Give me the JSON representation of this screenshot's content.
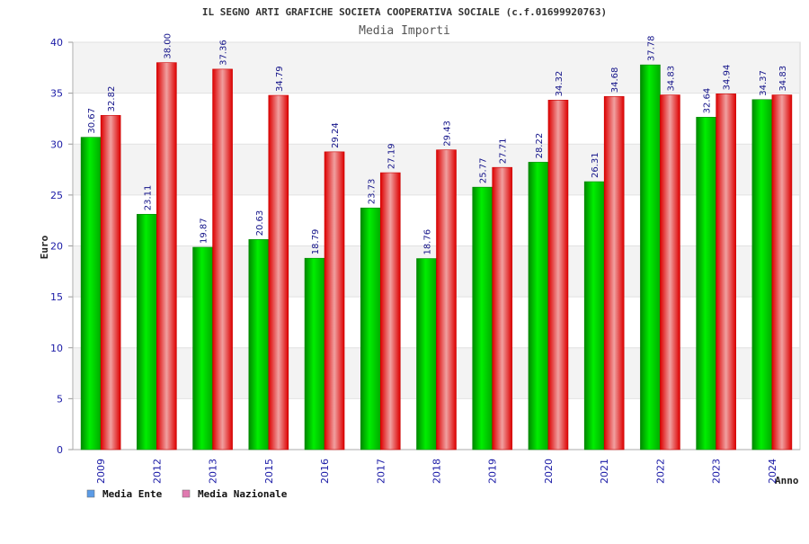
{
  "chart_data": {
    "type": "bar",
    "title": "IL SEGNO ARTI GRAFICHE SOCIETA COOPERATIVA SOCIALE (c.f.01699920763)",
    "subtitle": "Media Importi",
    "xlabel": "Anno",
    "ylabel": "Euro",
    "ylim": [
      0,
      40
    ],
    "yticks": [
      0,
      5,
      10,
      15,
      20,
      25,
      30,
      35,
      40
    ],
    "grid": true,
    "legend_position": "bottom-left",
    "categories": [
      "2009",
      "2012",
      "2013",
      "2015",
      "2016",
      "2017",
      "2018",
      "2019",
      "2020",
      "2021",
      "2022",
      "2023",
      "2024"
    ],
    "series": [
      {
        "name": "Media Ente",
        "color": "#00cc00",
        "legend_color": "#5b9be6",
        "values": [
          30.67,
          23.11,
          19.87,
          20.63,
          18.79,
          23.73,
          18.76,
          25.77,
          28.22,
          26.31,
          37.78,
          32.64,
          34.37
        ],
        "labels": [
          "30.67",
          "23.11",
          "19.87",
          "20.63",
          "18.79",
          "23.73",
          "18.76",
          "25.77",
          "28.22",
          "26.31",
          "37.78",
          "32.64",
          "34.37"
        ]
      },
      {
        "name": "Media Nazionale",
        "color": "#ee0000",
        "legend_color": "#e07ab0",
        "values": [
          32.82,
          38.0,
          37.36,
          34.79,
          29.24,
          27.19,
          29.43,
          27.71,
          34.32,
          34.68,
          34.83,
          34.94,
          34.83
        ],
        "labels": [
          "32.82",
          "38.00",
          "37.36",
          "34.79",
          "29.24",
          "27.19",
          "29.43",
          "27.71",
          "34.32",
          "34.68",
          "34.83",
          "34.94",
          "34.83"
        ]
      }
    ]
  }
}
